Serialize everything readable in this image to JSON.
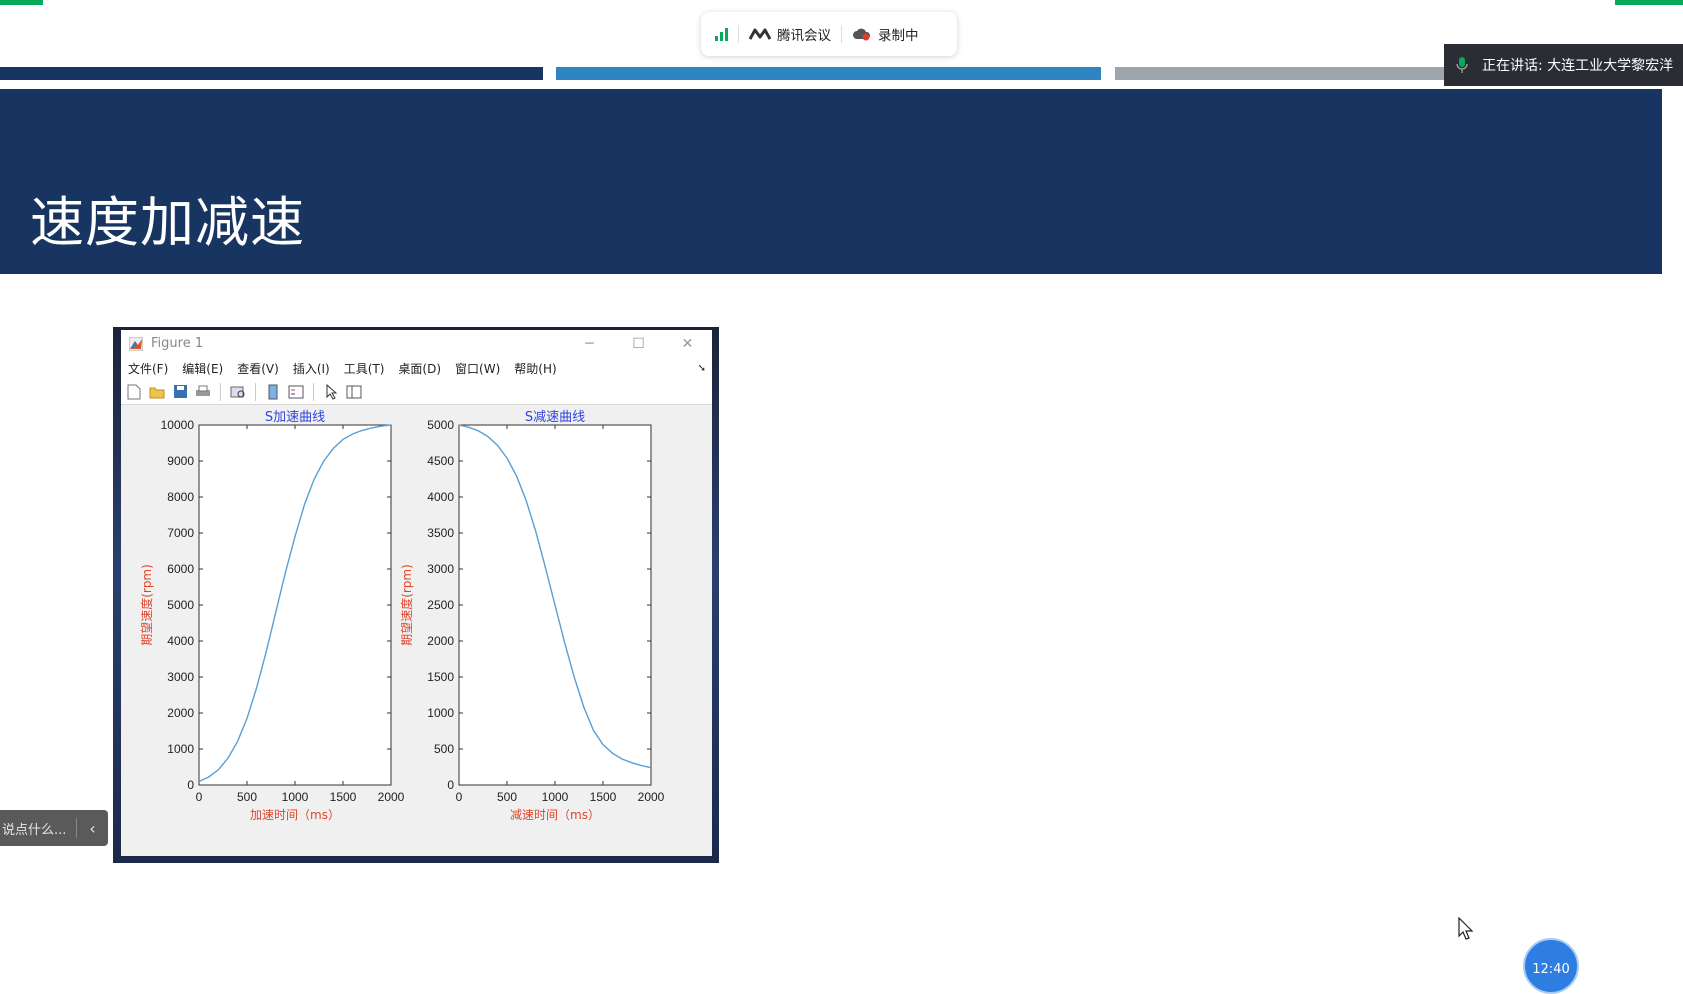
{
  "meeting_bar": {
    "app_name": "腾讯会议",
    "recording_label": "录制中"
  },
  "speaking": {
    "text": "正在讲话: 大连工业大学黎宏洋"
  },
  "slide": {
    "title": "速度加减速",
    "bar_colors": [
      "#183460",
      "#2e86c1",
      "#9ea4ab"
    ],
    "header_color": "#183460"
  },
  "figure_window": {
    "title": "Figure 1",
    "menu": [
      "文件(F)",
      "编辑(E)",
      "查看(V)",
      "插入(I)",
      "工具(T)",
      "桌面(D)",
      "窗口(W)",
      "帮助(H)"
    ]
  },
  "chart_data": [
    {
      "type": "line",
      "title": "S加速曲线",
      "xlabel": "加速时间（ms）",
      "ylabel": "期望速度(rpm)",
      "xlim": [
        0,
        2000
      ],
      "ylim": [
        0,
        10000
      ],
      "xticks": [
        0,
        500,
        1000,
        1500,
        2000
      ],
      "yticks": [
        0,
        1000,
        2000,
        3000,
        4000,
        5000,
        6000,
        7000,
        8000,
        9000,
        10000
      ],
      "grid": false,
      "series": [
        {
          "color": "#5a9fd4",
          "x": [
            0,
            100,
            200,
            300,
            400,
            500,
            600,
            700,
            800,
            900,
            1000,
            1100,
            1200,
            1300,
            1400,
            1500,
            1600,
            1700,
            1800,
            1900,
            2000
          ],
          "y": [
            100,
            220,
            420,
            740,
            1200,
            1850,
            2700,
            3700,
            4800,
            5900,
            6900,
            7800,
            8500,
            9000,
            9350,
            9600,
            9750,
            9850,
            9920,
            9970,
            10000
          ]
        }
      ]
    },
    {
      "type": "line",
      "title": "S减速曲线",
      "xlabel": "减速时间（ms）",
      "ylabel": "期望速度(rpm)",
      "xlim": [
        0,
        2000
      ],
      "ylim": [
        0,
        5000
      ],
      "xticks": [
        0,
        500,
        1000,
        1500,
        2000
      ],
      "yticks": [
        0,
        500,
        1000,
        1500,
        2000,
        2500,
        3000,
        3500,
        4000,
        4500,
        5000
      ],
      "grid": false,
      "series": [
        {
          "color": "#5a9fd4",
          "x": [
            0,
            100,
            200,
            300,
            400,
            500,
            600,
            700,
            800,
            900,
            1000,
            1100,
            1200,
            1300,
            1400,
            1500,
            1600,
            1700,
            1800,
            1900,
            2000
          ],
          "y": [
            5000,
            4970,
            4920,
            4840,
            4720,
            4540,
            4290,
            3950,
            3520,
            3020,
            2500,
            1980,
            1500,
            1080,
            760,
            560,
            440,
            360,
            310,
            270,
            240
          ]
        }
      ]
    }
  ],
  "chat": {
    "placeholder": "说点什么..."
  },
  "clock": {
    "time": "12:40"
  }
}
